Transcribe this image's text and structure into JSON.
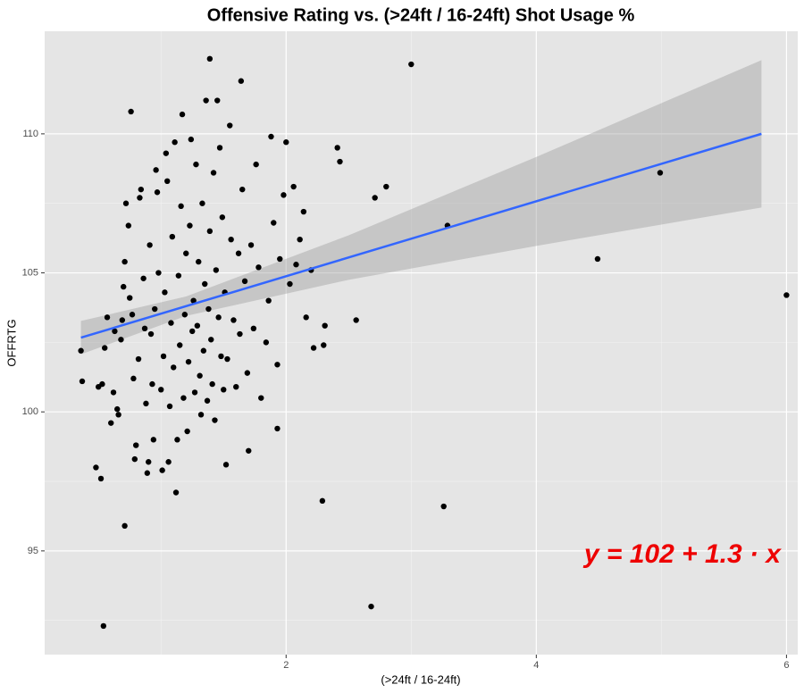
{
  "chart_data": {
    "type": "scatter",
    "title": "Offensive Rating vs. (>24ft / 16-24ft)  Shot Usage %",
    "x_label": "(>24ft / 16-24ft)",
    "y_label": "OFFRTG",
    "color": "#000000",
    "x": [
      0.36,
      0.37,
      0.48,
      0.52,
      0.5,
      0.53,
      0.57,
      0.55,
      0.6,
      0.62,
      0.63,
      0.65,
      0.66,
      0.68,
      0.69,
      0.7,
      0.71,
      0.72,
      0.74,
      0.75,
      0.76,
      0.77,
      0.78,
      0.79,
      0.8,
      0.82,
      0.83,
      0.84,
      0.86,
      0.87,
      0.88,
      0.89,
      0.9,
      0.91,
      0.92,
      0.93,
      0.94,
      0.95,
      0.96,
      0.97,
      0.98,
      1.0,
      1.01,
      1.02,
      1.03,
      1.04,
      1.05,
      1.06,
      1.07,
      1.08,
      1.09,
      1.1,
      1.11,
      1.12,
      1.13,
      1.14,
      1.15,
      1.16,
      1.17,
      1.18,
      1.19,
      1.2,
      1.21,
      1.22,
      1.23,
      1.24,
      1.25,
      1.26,
      1.27,
      1.28,
      1.29,
      1.3,
      1.31,
      1.32,
      1.33,
      1.34,
      1.35,
      1.36,
      1.37,
      1.38,
      1.39,
      1.4,
      1.41,
      1.42,
      1.43,
      1.44,
      1.45,
      1.46,
      1.47,
      1.48,
      1.49,
      1.5,
      1.51,
      1.52,
      1.53,
      1.55,
      1.56,
      1.58,
      1.6,
      1.62,
      1.63,
      1.65,
      1.67,
      1.69,
      1.7,
      1.72,
      1.74,
      1.76,
      1.78,
      1.8,
      1.84,
      1.86,
      1.88,
      1.9,
      1.93,
      1.95,
      1.98,
      2.0,
      2.03,
      2.06,
      2.08,
      2.11,
      2.14,
      2.16,
      2.2,
      2.22,
      2.29,
      2.3,
      2.31,
      2.41,
      2.43,
      2.56,
      2.71,
      2.8,
      3.0,
      3.29,
      3.26,
      2.68,
      4.49,
      4.99,
      6.0,
      0.54,
      0.71,
      1.39,
      1.64,
      1.93
    ],
    "values": [
      102.2,
      101.1,
      98.0,
      97.6,
      100.9,
      101.0,
      103.4,
      102.3,
      99.6,
      100.7,
      102.9,
      100.1,
      99.9,
      102.6,
      103.3,
      104.5,
      105.4,
      107.5,
      106.7,
      104.1,
      110.8,
      103.5,
      101.2,
      98.3,
      98.8,
      101.9,
      107.7,
      108.0,
      104.8,
      103.0,
      100.3,
      97.8,
      98.2,
      106.0,
      102.8,
      101.0,
      99.0,
      103.7,
      108.7,
      107.9,
      105.0,
      100.8,
      97.9,
      102.0,
      104.3,
      109.3,
      108.3,
      98.2,
      100.2,
      103.2,
      106.3,
      101.6,
      109.7,
      97.1,
      99.0,
      104.9,
      102.4,
      107.4,
      110.7,
      100.5,
      103.5,
      105.7,
      99.3,
      101.8,
      106.7,
      109.8,
      102.9,
      104.0,
      100.7,
      108.9,
      103.1,
      105.4,
      101.3,
      99.9,
      107.5,
      102.2,
      104.6,
      111.2,
      100.4,
      103.7,
      106.5,
      102.6,
      101.0,
      108.6,
      99.7,
      105.1,
      111.2,
      103.4,
      109.5,
      102.0,
      107.0,
      100.8,
      104.3,
      98.1,
      101.9,
      110.3,
      106.2,
      103.3,
      100.9,
      105.7,
      102.8,
      108.0,
      104.7,
      101.4,
      98.6,
      106.0,
      103.0,
      108.9,
      105.2,
      100.5,
      102.5,
      104.0,
      109.9,
      106.8,
      101.7,
      105.5,
      107.8,
      109.7,
      104.6,
      108.1,
      105.3,
      106.2,
      107.2,
      103.4,
      105.1,
      102.3,
      96.8,
      102.4,
      103.1,
      109.5,
      109.0,
      103.3,
      107.7,
      108.1,
      112.5,
      106.7,
      96.6,
      93.0,
      105.5,
      108.6,
      104.2,
      92.3,
      95.9,
      112.7,
      111.9,
      99.4
    ],
    "fit": {
      "color": "#3366ff",
      "x": [
        0.36,
        5.8
      ],
      "values": [
        102.67,
        110.0
      ]
    },
    "band": {
      "color": "#999999",
      "x": [
        0.36,
        1.2,
        2.5,
        4.0,
        5.8
      ],
      "lower": [
        102.07,
        103.45,
        104.75,
        105.97,
        107.35
      ],
      "upper": [
        103.27,
        104.15,
        106.35,
        109.17,
        112.65
      ]
    },
    "annotation": {
      "text": "y = 102 + 1.3 · x",
      "color": "#ee0000"
    },
    "xlim": [
      0.07,
      6.09
    ],
    "ylim": [
      91.27,
      113.69
    ],
    "xticks": [
      2,
      4,
      6
    ],
    "yticks": [
      95,
      100,
      105,
      110
    ],
    "x_minor_ticks": [
      1,
      3,
      5
    ],
    "y_minor_ticks": [
      92.5,
      97.5,
      102.5,
      107.5
    ],
    "grid": true
  }
}
